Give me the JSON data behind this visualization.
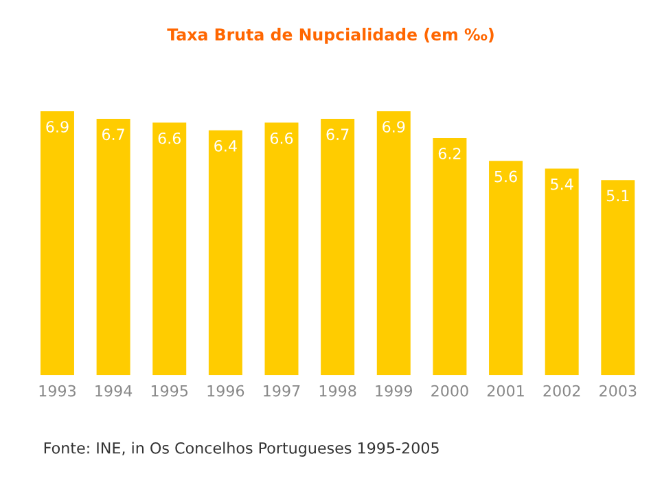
{
  "chart_data": {
    "type": "bar",
    "title": "Taxa Bruta de Nupcialidade (em ‰)",
    "categories": [
      "1993",
      "1994",
      "1995",
      "1996",
      "1997",
      "1998",
      "1999",
      "2000",
      "2001",
      "2002",
      "2003"
    ],
    "values": [
      6.9,
      6.7,
      6.6,
      6.4,
      6.6,
      6.7,
      6.9,
      6.2,
      5.6,
      5.4,
      5.1
    ],
    "color": "#ffcc00",
    "data_labels": true,
    "grid": false,
    "legend": false,
    "annotations": [
      "Fonte: INE, in Os Concelhos Portugueses 1995-2005"
    ]
  }
}
